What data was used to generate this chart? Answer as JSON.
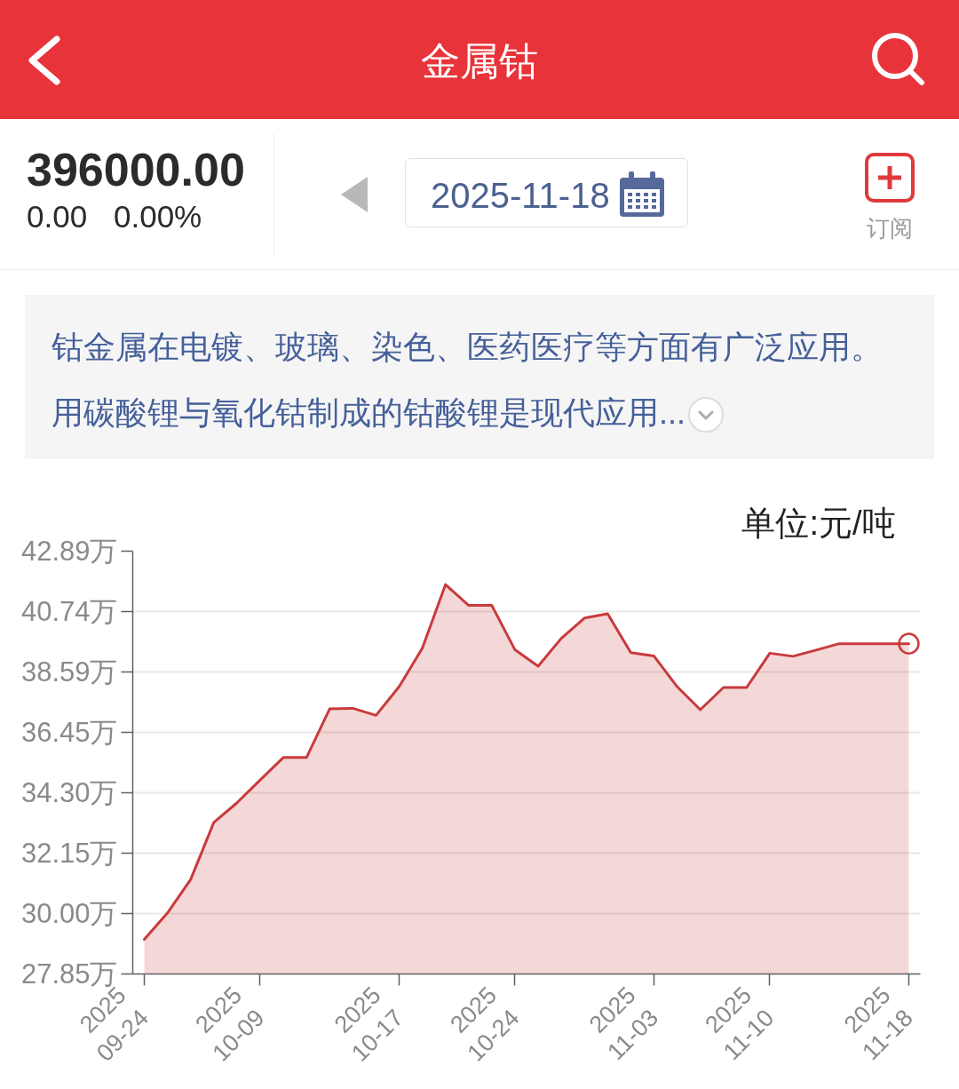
{
  "chart_data": {
    "type": "area",
    "title": "金属钴",
    "subtitle": "钴金属在电镀、玻璃、染色、医药医疗等方面有广泛应用。用碳酸锂与氧化钴制成的钴酸锂是现代应用...",
    "ylabel": "单位:元/吨",
    "annotations": [
      "396000.00",
      "0.00",
      "0.00%",
      "2025-11-18",
      "订阅"
    ],
    "categories": [
      "2025\n09-24",
      null,
      null,
      null,
      null,
      "2025\n10-09",
      null,
      null,
      null,
      null,
      null,
      "2025\n10-17",
      null,
      null,
      null,
      null,
      "2025\n10-24",
      null,
      null,
      null,
      null,
      null,
      "2025\n11-03",
      null,
      null,
      null,
      null,
      "2025\n11-10",
      null,
      null,
      null,
      null,
      null,
      "2025\n11-18"
    ],
    "series": [
      {
        "color": "#c93a3c",
        "values": [
          29.08,
          30.02,
          31.21,
          33.24,
          33.94,
          34.75,
          35.55,
          35.55,
          37.28,
          37.3,
          37.05,
          38.07,
          39.44,
          41.7,
          40.96,
          40.96,
          39.38,
          38.8,
          39.79,
          40.51,
          40.66,
          39.28,
          39.16,
          38.07,
          37.25,
          38.04,
          38.04,
          39.26,
          39.15,
          39.37,
          39.6,
          39.6,
          39.6,
          39.6
        ]
      },
      {
        "type": "scatter",
        "marker": "circle",
        "color": "#c93a3c",
        "values": [
          null,
          null,
          null,
          null,
          null,
          null,
          null,
          null,
          null,
          null,
          null,
          null,
          null,
          null,
          null,
          null,
          null,
          null,
          null,
          null,
          null,
          null,
          null,
          null,
          null,
          null,
          null,
          null,
          null,
          null,
          null,
          null,
          null,
          39.6
        ]
      }
    ],
    "ylim": [
      27.85,
      42.89
    ],
    "yticks": [
      {
        "value": 27.85,
        "label": "27.85万"
      },
      {
        "value": 30.0,
        "label": "30.00万"
      },
      {
        "value": 32.15,
        "label": "32.15万"
      },
      {
        "value": 34.3,
        "label": "34.30万"
      },
      {
        "value": 36.45,
        "label": "36.45万"
      },
      {
        "value": 38.59,
        "label": "38.59万"
      },
      {
        "value": 40.74,
        "label": "40.74万"
      },
      {
        "value": 42.89,
        "label": "42.89万"
      }
    ],
    "grid": "y"
  }
}
